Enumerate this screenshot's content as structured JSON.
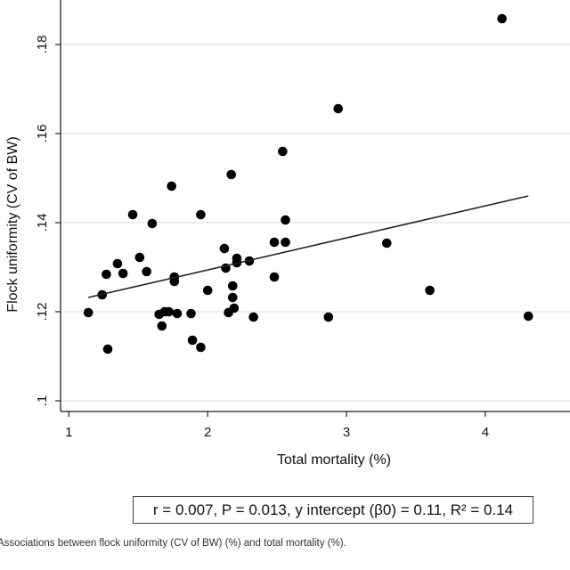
{
  "chart_data": {
    "type": "scatter",
    "xlabel": "Total mortality (%)",
    "ylabel": "Flock uniformity (CV of BW)",
    "xlim": [
      0.94,
      4.61
    ],
    "ylim": [
      0.0976,
      0.19
    ],
    "xticks": [
      {
        "v": 1,
        "label": "1"
      },
      {
        "v": 2,
        "label": "2"
      },
      {
        "v": 3,
        "label": "3"
      },
      {
        "v": 4,
        "label": "4"
      }
    ],
    "yticks": [
      {
        "v": 0.1,
        "label": ".1"
      },
      {
        "v": 0.12,
        "label": ".12"
      },
      {
        "v": 0.14,
        "label": ".14"
      },
      {
        "v": 0.16,
        "label": ".16"
      },
      {
        "v": 0.18,
        "label": ".18"
      }
    ],
    "grid": "horizontal",
    "points": [
      [
        1.14,
        0.1198
      ],
      [
        1.24,
        0.1238
      ],
      [
        1.27,
        0.1284
      ],
      [
        1.28,
        0.1116
      ],
      [
        1.35,
        0.1308
      ],
      [
        1.39,
        0.1286
      ],
      [
        1.46,
        0.1418
      ],
      [
        1.51,
        0.1322
      ],
      [
        1.56,
        0.129
      ],
      [
        1.6,
        0.1398
      ],
      [
        1.65,
        0.1194
      ],
      [
        1.67,
        0.1168
      ],
      [
        1.69,
        0.12
      ],
      [
        1.72,
        0.12
      ],
      [
        1.74,
        0.1482
      ],
      [
        1.76,
        0.1268
      ],
      [
        1.76,
        0.1278
      ],
      [
        1.78,
        0.1196
      ],
      [
        1.88,
        0.1196
      ],
      [
        1.89,
        0.1136
      ],
      [
        1.95,
        0.112
      ],
      [
        1.95,
        0.1418
      ],
      [
        2.0,
        0.1248
      ],
      [
        2.12,
        0.1342
      ],
      [
        2.13,
        0.1298
      ],
      [
        2.15,
        0.1198
      ],
      [
        2.17,
        0.1508
      ],
      [
        2.18,
        0.1258
      ],
      [
        2.18,
        0.1232
      ],
      [
        2.19,
        0.1208
      ],
      [
        2.21,
        0.132
      ],
      [
        2.21,
        0.131
      ],
      [
        2.3,
        0.1314
      ],
      [
        2.33,
        0.1188
      ],
      [
        2.48,
        0.1356
      ],
      [
        2.48,
        0.1278
      ],
      [
        2.54,
        0.156
      ],
      [
        2.56,
        0.1406
      ],
      [
        2.56,
        0.1356
      ],
      [
        2.87,
        0.1188
      ],
      [
        2.94,
        0.1656
      ],
      [
        3.29,
        0.1354
      ],
      [
        3.6,
        0.1248
      ],
      [
        4.12,
        0.1858
      ],
      [
        4.31,
        0.119
      ]
    ],
    "fit_line": {
      "x": [
        1.14,
        4.31
      ],
      "y": [
        0.1232,
        0.146
      ]
    },
    "annotation": "r = 0.007, P = 0.013, y intercept (β0) = 0.11, R² = 0.14"
  },
  "caption": "Associations between flock uniformity (CV of BW) (%) and total mortality (%)."
}
